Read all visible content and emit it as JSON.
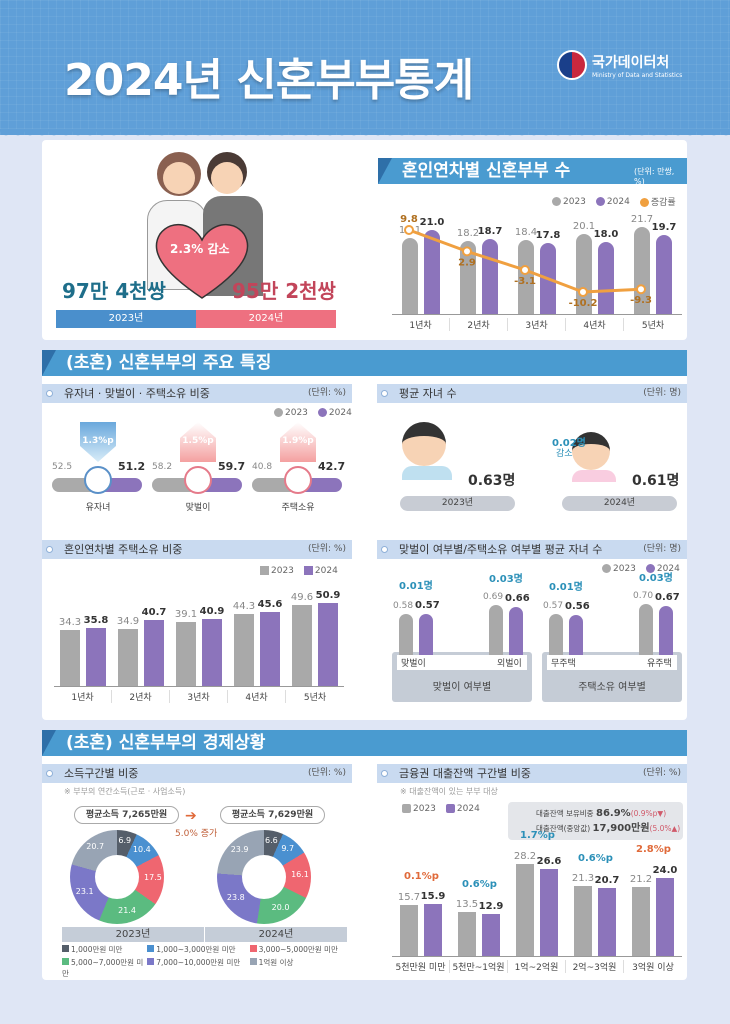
{
  "header": {
    "title": "2024년 신혼부부통계",
    "org_ko": "국가데이터처",
    "org_en": "Ministry of Data and Statistics"
  },
  "hero": {
    "left_value": "97만 4천쌍",
    "left_year": "2023년",
    "right_value": "95만 2천쌍",
    "right_year": "2024년",
    "change": "2.3% 감소"
  },
  "section1": {
    "title": "혼인연차별 신혼부부 수",
    "unit": "(단위: 만쌍, %)"
  },
  "section2": {
    "title": "(초혼) 신혼부부의 주요 특징"
  },
  "section3": {
    "title": "(초혼) 신혼부부의 경제상황"
  },
  "legend": {
    "y2023": "2023",
    "y2024": "2024",
    "rate": "증감률"
  },
  "features": {
    "title": "유자녀 · 맞벌이 · 주택소유 비중",
    "unit": "(단위: %)",
    "items": [
      {
        "label": "유자녀",
        "v2023": "52.5",
        "v2024": "51.2",
        "change": "1.3%p"
      },
      {
        "label": "맞벌이",
        "v2023": "58.2",
        "v2024": "59.7",
        "change": "1.5%p"
      },
      {
        "label": "주택소유",
        "v2023": "40.8",
        "v2024": "42.7",
        "change": "1.9%p"
      }
    ]
  },
  "avg_children": {
    "title": "평균 자녀 수",
    "unit": "(단위: 명)",
    "v2023": "0.63명",
    "v2024": "0.61명",
    "y2023": "2023년",
    "y2024": "2024년",
    "change": "0.02명",
    "change_label": "감소"
  },
  "housing": {
    "title": "혼인연차별 주택소유 비중",
    "unit": "(단위: %)"
  },
  "dual": {
    "title": "맞벌이 여부별/주택소유 여부별 평균 자녀 수",
    "unit": "(단위: 명)",
    "groups": [
      {
        "label": "맞벌이 여부별",
        "a": "맞벌이",
        "b": "외벌이",
        "a23": "0.58",
        "a24": "0.57",
        "b23": "0.69",
        "b24": "0.66",
        "ac": "0.01명",
        "bc": "0.03명"
      },
      {
        "label": "주택소유 여부별",
        "a": "무주택",
        "b": "유주택",
        "a23": "0.57",
        "a24": "0.56",
        "b23": "0.70",
        "b24": "0.67",
        "ac": "0.01명",
        "bc": "0.03명"
      }
    ]
  },
  "income": {
    "title": "소득구간별 비중",
    "unit": "(단위: %)",
    "note": "※ 부부의 연간소득(근로 · 사업소득)",
    "avg2023": "평균소득 7,265만원",
    "avg2024": "평균소득 7,629만원",
    "change": "5.0% 증가",
    "y2023": "2023년",
    "y2024": "2024년",
    "legend": [
      "1,000만원 미만",
      "1,000~3,000만원 미만",
      "3,000~5,000만원 미만",
      "5,000~7,000만원 미만",
      "7,000~10,000만원 미만",
      "1억원 이상"
    ]
  },
  "loan": {
    "title": "금융권 대출잔액 구간별 비중",
    "unit": "(단위: %)",
    "note": "※ 대출잔액이 있는 부부 대상",
    "hold_label": "대출잔액 보유비중",
    "hold_value": "86.9%",
    "hold_change": "(0.9%p▼)",
    "median_label": "대출잔액(중앙값)",
    "median_value": "17,900만원",
    "median_change": "(5.0%▲)"
  },
  "chart_data": [
    {
      "type": "bar",
      "title": "혼인연차별 신혼부부 수",
      "unit": "만쌍, %",
      "categories": [
        "1년차",
        "2년차",
        "3년차",
        "4년차",
        "5년차"
      ],
      "series": [
        {
          "name": "2023",
          "values": [
            19.1,
            18.2,
            18.4,
            20.1,
            21.7
          ]
        },
        {
          "name": "2024",
          "values": [
            21.0,
            18.7,
            17.8,
            18.0,
            19.7
          ]
        },
        {
          "name": "증감률",
          "type": "line",
          "values": [
            9.8,
            2.9,
            -3.1,
            -10.2,
            -9.3
          ]
        }
      ]
    },
    {
      "type": "bar",
      "title": "유자녀 · 맞벌이 · 주택소유 비중",
      "unit": "%",
      "categories": [
        "유자녀",
        "맞벌이",
        "주택소유"
      ],
      "series": [
        {
          "name": "2023",
          "values": [
            52.5,
            58.2,
            40.8
          ]
        },
        {
          "name": "2024",
          "values": [
            51.2,
            59.7,
            42.7
          ]
        }
      ]
    },
    {
      "type": "bar",
      "title": "평균 자녀 수",
      "unit": "명",
      "categories": [
        "2023년",
        "2024년"
      ],
      "values": [
        0.63,
        0.61
      ]
    },
    {
      "type": "bar",
      "title": "혼인연차별 주택소유 비중",
      "unit": "%",
      "categories": [
        "1년차",
        "2년차",
        "3년차",
        "4년차",
        "5년차"
      ],
      "series": [
        {
          "name": "2023",
          "values": [
            34.3,
            34.9,
            39.1,
            44.3,
            49.6
          ]
        },
        {
          "name": "2024",
          "values": [
            35.8,
            40.7,
            40.9,
            45.6,
            50.9
          ]
        }
      ]
    },
    {
      "type": "bar",
      "title": "맞벌이 여부별/주택소유 여부별 평균 자녀 수",
      "unit": "명",
      "categories": [
        "맞벌이",
        "외벌이",
        "무주택",
        "유주택"
      ],
      "series": [
        {
          "name": "2023",
          "values": [
            0.58,
            0.69,
            0.57,
            0.7
          ]
        },
        {
          "name": "2024",
          "values": [
            0.57,
            0.66,
            0.56,
            0.67
          ]
        }
      ]
    },
    {
      "type": "pie",
      "title": "소득구간별 비중 2023",
      "unit": "%",
      "categories": [
        "1,000만원 미만",
        "1,000~3,000만원 미만",
        "3,000~5,000만원 미만",
        "5,000~7,000만원 미만",
        "7,000~10,000만원 미만",
        "1억원 이상"
      ],
      "values": [
        6.9,
        10.4,
        17.5,
        21.4,
        23.1,
        20.7
      ]
    },
    {
      "type": "pie",
      "title": "소득구간별 비중 2024",
      "unit": "%",
      "categories": [
        "1,000만원 미만",
        "1,000~3,000만원 미만",
        "3,000~5,000만원 미만",
        "5,000~7,000만원 미만",
        "7,000~10,000만원 미만",
        "1억원 이상"
      ],
      "values": [
        6.6,
        9.7,
        16.1,
        20.0,
        23.8,
        23.9
      ]
    },
    {
      "type": "bar",
      "title": "금융권 대출잔액 구간별 비중",
      "unit": "%",
      "categories": [
        "5천만원 미만",
        "5천만~1억원",
        "1억~2억원",
        "2억~3억원",
        "3억원 이상"
      ],
      "series": [
        {
          "name": "2023",
          "values": [
            15.7,
            13.5,
            28.2,
            21.3,
            21.2
          ]
        },
        {
          "name": "2024",
          "values": [
            15.9,
            12.9,
            26.6,
            20.7,
            24.0
          ]
        }
      ],
      "changes": [
        "0.1%p",
        "0.6%p",
        "1.7%p",
        "0.6%p",
        "2.8%p"
      ]
    }
  ]
}
